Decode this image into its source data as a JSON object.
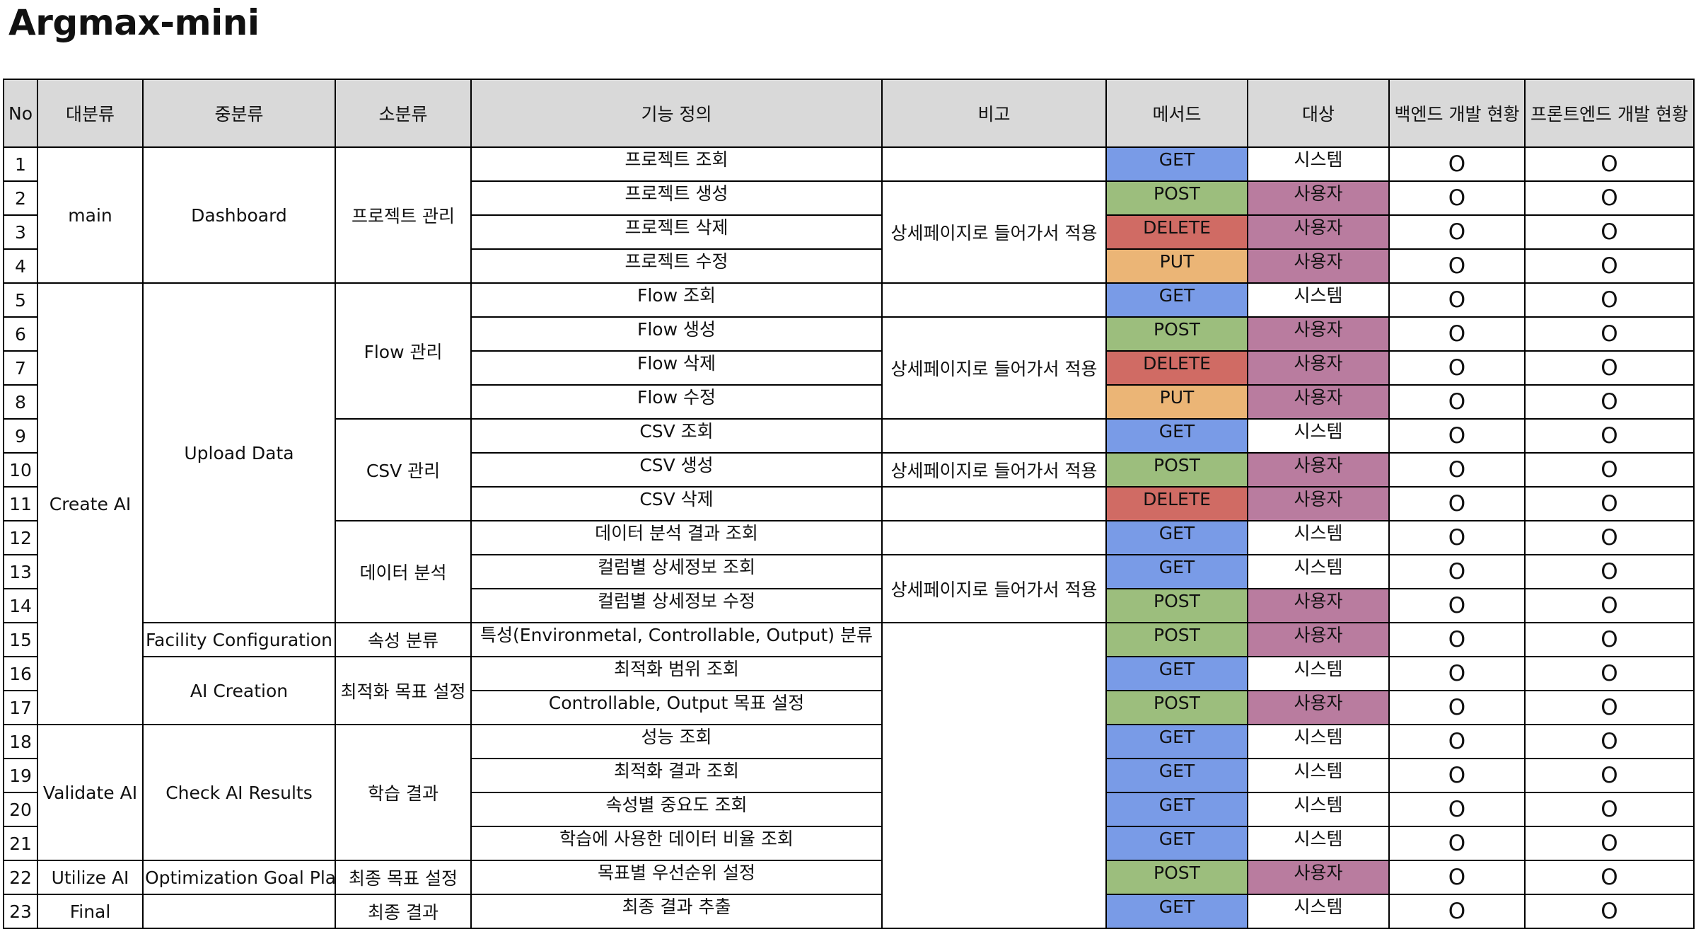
{
  "title": "Argmax-mini",
  "colors": {
    "GET": "#799be7",
    "POST": "#9cbe7d",
    "DELETE": "#d06b64",
    "PUT": "#ebb576",
    "user_target": "#b97c9f",
    "header_bg": "#d9d9d9"
  },
  "headers": {
    "no": "No",
    "major": "대분류",
    "middle": "중분류",
    "minor": "소분류",
    "definition": "기능 정의",
    "note": "비고",
    "method": "메서드",
    "target": "대상",
    "backend": "백엔드 개발 현황",
    "frontend": "프론트엔드 개발 현황"
  },
  "groups": {
    "major": [
      "main",
      "Create AI",
      "Validate AI",
      "Utilize AI",
      "Final"
    ],
    "middle": [
      "Dashboard",
      "Upload Data",
      "Facility Configuration",
      "AI Creation",
      "Check AI Results",
      "Optimization Goal Plan",
      ""
    ],
    "minor": [
      "프로젝트 관리",
      "Flow 관리",
      "CSV 관리",
      "데이터 분석",
      "속성 분류",
      "최적화 목표 설정",
      "학습 결과",
      "최종 목표 설정",
      "최종 결과"
    ],
    "note": [
      "",
      "상세페이지로 들어가서 적용",
      "",
      "상세페이지로 들어가서 적용",
      "",
      "상세페이지로 들어가서 적용",
      "",
      "",
      "상세페이지로 들어가서 적용",
      ""
    ]
  },
  "rows": [
    {
      "no": "1",
      "definition": "프로젝트 조회",
      "method": "GET",
      "target": "시스템",
      "backend": "O",
      "frontend": "O"
    },
    {
      "no": "2",
      "definition": "프로젝트 생성",
      "method": "POST",
      "target": "사용자",
      "backend": "O",
      "frontend": "O"
    },
    {
      "no": "3",
      "definition": "프로젝트 삭제",
      "method": "DELETE",
      "target": "사용자",
      "backend": "O",
      "frontend": "O"
    },
    {
      "no": "4",
      "definition": "프로젝트 수정",
      "method": "PUT",
      "target": "사용자",
      "backend": "O",
      "frontend": "O"
    },
    {
      "no": "5",
      "definition": "Flow 조회",
      "method": "GET",
      "target": "시스템",
      "backend": "O",
      "frontend": "O"
    },
    {
      "no": "6",
      "definition": "Flow 생성",
      "method": "POST",
      "target": "사용자",
      "backend": "O",
      "frontend": "O"
    },
    {
      "no": "7",
      "definition": "Flow 삭제",
      "method": "DELETE",
      "target": "사용자",
      "backend": "O",
      "frontend": "O"
    },
    {
      "no": "8",
      "definition": "Flow 수정",
      "method": "PUT",
      "target": "사용자",
      "backend": "O",
      "frontend": "O"
    },
    {
      "no": "9",
      "definition": "CSV 조회",
      "method": "GET",
      "target": "시스템",
      "backend": "O",
      "frontend": "O"
    },
    {
      "no": "10",
      "definition": "CSV 생성",
      "method": "POST",
      "target": "사용자",
      "backend": "O",
      "frontend": "O"
    },
    {
      "no": "11",
      "definition": "CSV 삭제",
      "method": "DELETE",
      "target": "사용자",
      "backend": "O",
      "frontend": "O"
    },
    {
      "no": "12",
      "definition": "데이터 분석 결과 조회",
      "method": "GET",
      "target": "시스템",
      "backend": "O",
      "frontend": "O"
    },
    {
      "no": "13",
      "definition": "컬럼별 상세정보 조회",
      "method": "GET",
      "target": "시스템",
      "backend": "O",
      "frontend": "O"
    },
    {
      "no": "14",
      "definition": "컬럼별 상세정보 수정",
      "method": "POST",
      "target": "사용자",
      "backend": "O",
      "frontend": "O"
    },
    {
      "no": "15",
      "definition": "특성(Environmetal, Controllable, Output) 분류",
      "method": "POST",
      "target": "사용자",
      "backend": "O",
      "frontend": "O"
    },
    {
      "no": "16",
      "definition": "최적화 범위 조회",
      "method": "GET",
      "target": "시스템",
      "backend": "O",
      "frontend": "O"
    },
    {
      "no": "17",
      "definition": "Controllable, Output 목표 설정",
      "method": "POST",
      "target": "사용자",
      "backend": "O",
      "frontend": "O"
    },
    {
      "no": "18",
      "definition": "성능 조회",
      "method": "GET",
      "target": "시스템",
      "backend": "O",
      "frontend": "O"
    },
    {
      "no": "19",
      "definition": "최적화 결과 조회",
      "method": "GET",
      "target": "시스템",
      "backend": "O",
      "frontend": "O"
    },
    {
      "no": "20",
      "definition": "속성별 중요도 조회",
      "method": "GET",
      "target": "시스템",
      "backend": "O",
      "frontend": "O"
    },
    {
      "no": "21",
      "definition": "학습에 사용한 데이터 비율 조회",
      "method": "GET",
      "target": "시스템",
      "backend": "O",
      "frontend": "O"
    },
    {
      "no": "22",
      "definition": "목표별 우선순위 설정",
      "method": "POST",
      "target": "사용자",
      "backend": "O",
      "frontend": "O"
    },
    {
      "no": "23",
      "definition": "최종 결과 추출",
      "method": "GET",
      "target": "시스템",
      "backend": "O",
      "frontend": "O"
    }
  ]
}
